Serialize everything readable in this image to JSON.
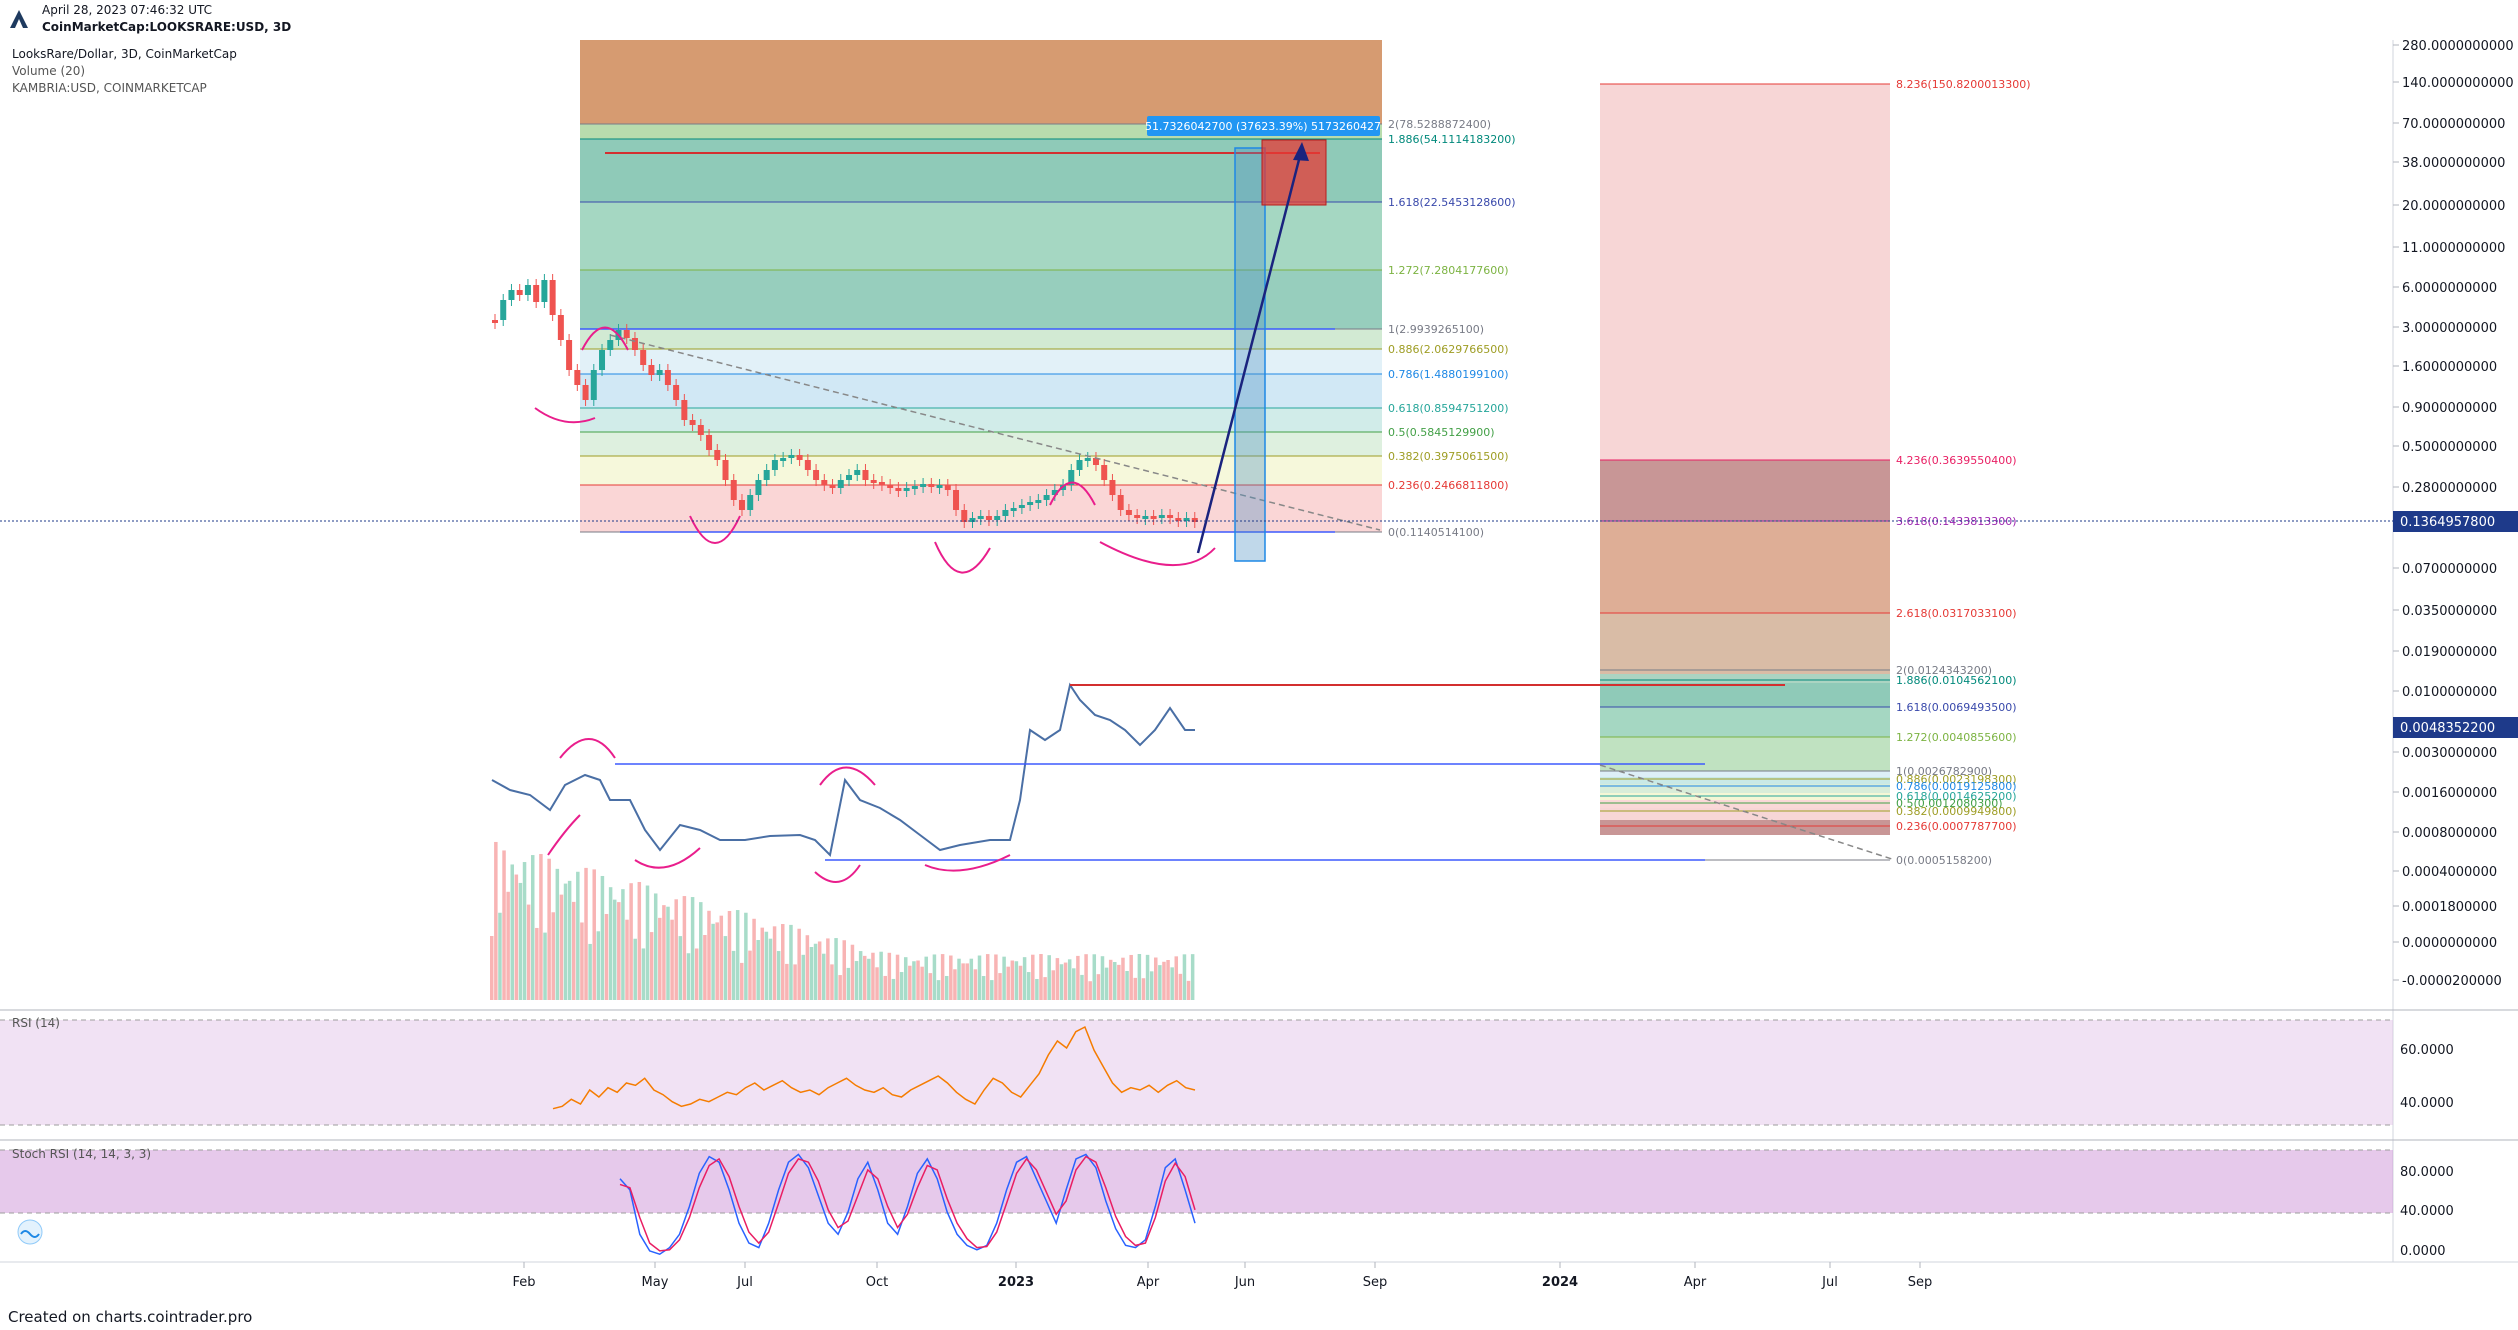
{
  "header": {
    "timestamp": "April 28, 2023 07:46:32 UTC",
    "symbol_line": "CoinMarketCap:LOOKSRARE:USD, 3D"
  },
  "legend": {
    "title": "LooksRare/Dollar, 3D, CoinMarketCap",
    "volume": "Volume (20)",
    "compare": "KAMBRIA:USD, COINMARKETCAP"
  },
  "footer": "Created on charts.cointrader.pro",
  "colors": {
    "up": "#26a69a",
    "down": "#ef5350",
    "compare": "#4a6fa5",
    "rsi": "#f57c00",
    "stoch_k": "#2962ff",
    "stoch_d": "#e91e63",
    "fib_red": "#e57373",
    "highlight": "#e91e8c",
    "price_tag": "#1e3a8a"
  },
  "chart_data": [
    {
      "type": "candlestick",
      "title": "LooksRare/Dollar, 3D, CoinMarketCap",
      "y_scale": "log",
      "y_ticks": [
        "280.0000000000",
        "140.0000000000",
        "70.0000000000",
        "38.0000000000",
        "20.0000000000",
        "11.0000000000",
        "6.0000000000",
        "3.0000000000",
        "1.6000000000",
        "0.9000000000",
        "0.5000000000",
        "0.2800000000",
        "0.0700000000",
        "0.0350000000",
        "0.0190000000",
        "0.0100000000",
        "0.0030000000",
        "0.0016000000",
        "0.0008000000",
        "0.0004000000",
        "0.0001800000",
        "0.0000000000",
        "-0.0000200000"
      ],
      "x_ticks": [
        "Feb",
        "May",
        "Jul",
        "Oct",
        "2023",
        "Apr",
        "Jun",
        "Sep",
        "2024",
        "Apr",
        "Jul",
        "Sep"
      ],
      "last_price": "0.1364957800",
      "compare_last": "0.0048352200",
      "fib_top": [
        {
          "label": "2(78.5288872400)",
          "color": "#787b86"
        },
        {
          "label": "1.886(54.1114183200)",
          "color": "#00897b"
        },
        {
          "label": "1.618(22.5453128600)",
          "color": "#3949ab"
        },
        {
          "label": "1.272(7.2804177600)",
          "color": "#7cb342"
        },
        {
          "label": "1(2.9939265100)",
          "color": "#787b86"
        },
        {
          "label": "0.886(2.0629766500)",
          "color": "#9e9d24"
        },
        {
          "label": "0.786(1.4880199100)",
          "color": "#1e88e5"
        },
        {
          "label": "0.618(0.8594751200)",
          "color": "#26a69a"
        },
        {
          "label": "0.5(0.5845129900)",
          "color": "#43a047"
        },
        {
          "label": "0.382(0.3975061500)",
          "color": "#9e9d24"
        },
        {
          "label": "0.236(0.2466811800)",
          "color": "#e53935"
        },
        {
          "label": "0(0.1140514100)",
          "color": "#787b86"
        }
      ],
      "fib_bottom": [
        {
          "label": "8.236(150.8200013300)",
          "color": "#e53935"
        },
        {
          "label": "4.236(0.3639550400)",
          "color": "#e91e63"
        },
        {
          "label": "3.618(0.1433813300)",
          "color": "#9c27b0"
        },
        {
          "label": "2.618(0.0317033100)",
          "color": "#e53935"
        },
        {
          "label": "2(0.0124343200)",
          "color": "#787b86"
        },
        {
          "label": "1.886(0.0104562100)",
          "color": "#00897b"
        },
        {
          "label": "1.618(0.0069493500)",
          "color": "#3949ab"
        },
        {
          "label": "1.272(0.0040855600)",
          "color": "#7cb342"
        },
        {
          "label": "1(0.0026782900)",
          "color": "#787b86"
        },
        {
          "label": "0.886(0.0023198300)",
          "color": "#9e9d24"
        },
        {
          "label": "0.786(0.0019125800)",
          "color": "#1e88e5"
        },
        {
          "label": "0.618(0.0014625200)",
          "color": "#26a69a"
        },
        {
          "label": "0.5(0.0012080300)",
          "color": "#43a047"
        },
        {
          "label": "0.382(0.0009949800)",
          "color": "#9e9d24"
        },
        {
          "label": "0.236(0.0007787700)",
          "color": "#e53935"
        },
        {
          "label": "0(0.0005158200)",
          "color": "#787b86"
        }
      ],
      "measure_label": "51.7326042700 (37623.39%) 5173260427"
    },
    {
      "type": "line",
      "title": "RSI (14)",
      "y_ticks": [
        "60.0000",
        "40.0000"
      ],
      "values": [
        37,
        38,
        41,
        39,
        45,
        42,
        46,
        44,
        48,
        47,
        50,
        45,
        43,
        40,
        38,
        39,
        41,
        40,
        42,
        44,
        43,
        46,
        48,
        45,
        47,
        49,
        46,
        44,
        45,
        43,
        46,
        48,
        50,
        47,
        45,
        44,
        46,
        43,
        42,
        45,
        47,
        49,
        51,
        48,
        44,
        41,
        39,
        45,
        50,
        48,
        44,
        42,
        47,
        52,
        60,
        66,
        63,
        70,
        72,
        62,
        55,
        48,
        44,
        46,
        45,
        47,
        44,
        47,
        49,
        46,
        45
      ]
    },
    {
      "type": "line",
      "title": "Stoch RSI (14, 14, 3, 3)",
      "y_ticks": [
        "80.0000",
        "40.0000",
        "0.0000"
      ],
      "series": [
        {
          "name": "K",
          "values": [
            70,
            60,
            20,
            5,
            2,
            8,
            20,
            45,
            75,
            90,
            85,
            60,
            30,
            12,
            8,
            30,
            60,
            85,
            92,
            80,
            55,
            30,
            20,
            40,
            70,
            85,
            60,
            30,
            20,
            45,
            75,
            88,
            70,
            40,
            20,
            10,
            6,
            10,
            30,
            60,
            85,
            90,
            70,
            50,
            30,
            60,
            88,
            92,
            80,
            50,
            25,
            10,
            8,
            15,
            45,
            80,
            88,
            60,
            30
          ]
        },
        {
          "name": "D",
          "values": [
            65,
            62,
            35,
            12,
            5,
            6,
            15,
            35,
            62,
            82,
            88,
            72,
            45,
            22,
            12,
            22,
            48,
            75,
            88,
            85,
            68,
            42,
            26,
            32,
            55,
            78,
            70,
            45,
            26,
            38,
            62,
            82,
            78,
            52,
            30,
            16,
            8,
            9,
            22,
            48,
            75,
            88,
            78,
            58,
            38,
            50,
            78,
            90,
            85,
            62,
            36,
            18,
            10,
            12,
            35,
            68,
            84,
            72,
            42
          ]
        }
      ]
    }
  ]
}
